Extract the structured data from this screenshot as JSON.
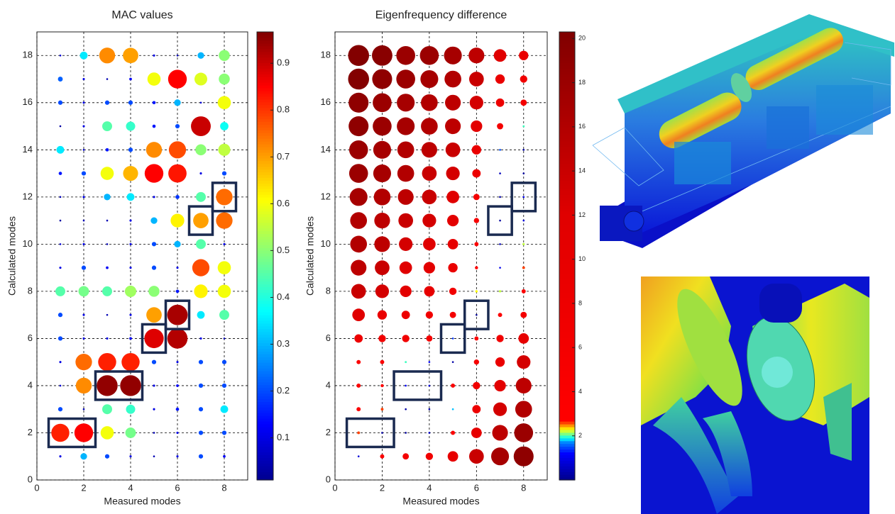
{
  "chart_data": [
    {
      "type": "bubble",
      "title": "MAC values",
      "xlabel": "Measured modes",
      "ylabel": "Calculated modes",
      "x": [
        1,
        2,
        3,
        4,
        5,
        6,
        7,
        8
      ],
      "y": [
        1,
        2,
        3,
        4,
        5,
        6,
        7,
        8,
        9,
        10,
        11,
        12,
        13,
        14,
        15,
        16,
        17,
        18
      ],
      "values": [
        [
          0.1,
          0.3,
          0.2,
          0.1,
          0.05,
          0.1,
          0.2,
          0.12
        ],
        [
          0.82,
          0.85,
          0.6,
          0.48,
          0.05,
          0.1,
          0.2,
          0.2
        ],
        [
          0.2,
          0.05,
          0.45,
          0.42,
          0.1,
          0.15,
          0.2,
          0.35
        ],
        [
          0.08,
          0.72,
          0.95,
          0.95,
          0.1,
          0.12,
          0.2,
          0.2
        ],
        [
          0.1,
          0.75,
          0.82,
          0.82,
          0.2,
          0.1,
          0.2,
          0.2
        ],
        [
          0.2,
          0.1,
          0.1,
          0.12,
          0.88,
          0.92,
          0.1,
          0.05
        ],
        [
          0.2,
          0.1,
          0.05,
          0.1,
          0.7,
          0.93,
          0.35,
          0.45
        ],
        [
          0.45,
          0.48,
          0.45,
          0.52,
          0.5,
          0.15,
          0.62,
          0.6
        ],
        [
          0.1,
          0.2,
          0.12,
          0.1,
          0.2,
          0.1,
          0.78,
          0.6
        ],
        [
          0.08,
          0.1,
          0.05,
          0.1,
          0.2,
          0.3,
          0.45,
          0.1
        ],
        [
          0.03,
          0.05,
          0.05,
          0.1,
          0.3,
          0.62,
          0.7,
          0.75
        ],
        [
          0.05,
          0.1,
          0.3,
          0.35,
          0.1,
          0.18,
          0.45,
          0.75
        ],
        [
          0.15,
          0.2,
          0.6,
          0.68,
          0.85,
          0.83,
          0.1,
          0.2
        ],
        [
          0.35,
          0.08,
          0.15,
          0.2,
          0.72,
          0.78,
          0.5,
          0.55
        ],
        [
          0.03,
          0.1,
          0.45,
          0.42,
          0.15,
          0.2,
          0.9,
          0.38
        ],
        [
          0.2,
          0.1,
          0.2,
          0.2,
          0.15,
          0.3,
          0.08,
          0.6
        ],
        [
          0.22,
          0.1,
          0.05,
          0.12,
          0.6,
          0.85,
          0.58,
          0.5
        ],
        [
          0.08,
          0.35,
          0.72,
          0.7,
          0.1,
          0.05,
          0.3,
          0.5
        ]
      ],
      "xlim": [
        0,
        9
      ],
      "ylim": [
        0,
        19
      ],
      "xticks": [
        0,
        2,
        4,
        6,
        8
      ],
      "yticks": [
        0,
        2,
        4,
        6,
        8,
        10,
        12,
        14,
        16,
        18
      ],
      "grid": true,
      "colorbar": {
        "lim": [
          0.01,
          0.967
        ],
        "ticks": [
          0.1,
          0.2,
          0.3,
          0.4,
          0.5,
          0.6,
          0.7,
          0.8,
          0.9
        ],
        "stops": [
          [
            0.01,
            "#00008f"
          ],
          [
            0.13,
            "#0000ff"
          ],
          [
            0.37,
            "#00ffff"
          ],
          [
            0.49,
            "#80ff80"
          ],
          [
            0.61,
            "#ffff00"
          ],
          [
            0.73,
            "#ff8000"
          ],
          [
            0.85,
            "#ff0000"
          ],
          [
            0.967,
            "#800000"
          ]
        ]
      },
      "highlights": [
        [
          1,
          2
        ],
        [
          2,
          2
        ],
        [
          3,
          4
        ],
        [
          4,
          4
        ],
        [
          5,
          6
        ],
        [
          6,
          7
        ],
        [
          7,
          11
        ],
        [
          8,
          12
        ]
      ]
    },
    {
      "type": "bubble",
      "title": "Eigenfrequency difference",
      "xlabel": "Measured modes",
      "ylabel": "Calculated modes",
      "x": [
        1,
        2,
        3,
        4,
        5,
        6,
        7,
        8
      ],
      "y": [
        1,
        2,
        3,
        4,
        5,
        6,
        7,
        8,
        9,
        10,
        11,
        12,
        13,
        14,
        15,
        16,
        17,
        18
      ],
      "values": [
        [
          0.8,
          4,
          6,
          7,
          10,
          14,
          17,
          19
        ],
        [
          2.6,
          0.3,
          0.2,
          0.6,
          4,
          10,
          15,
          18
        ],
        [
          4,
          2.6,
          0.3,
          0.3,
          1.8,
          8,
          13,
          16
        ],
        [
          4,
          3,
          1.2,
          0.8,
          4,
          7,
          11,
          15
        ],
        [
          4,
          4,
          2,
          1.2,
          0.3,
          5,
          9,
          13
        ],
        [
          8,
          7,
          7,
          6,
          1.4,
          4,
          7,
          10
        ],
        [
          12,
          9,
          8,
          7,
          6,
          0.1,
          4,
          6
        ],
        [
          14,
          13,
          11,
          10,
          7,
          2.3,
          2.2,
          4
        ],
        [
          15,
          14,
          12,
          11,
          9,
          3,
          1,
          2.6
        ],
        [
          16,
          15,
          13,
          12,
          10,
          4,
          0.5,
          2.2
        ],
        [
          16,
          15,
          14,
          13,
          11,
          5,
          0.2,
          0.8
        ],
        [
          17,
          16,
          15,
          14,
          12,
          6,
          0.3,
          1
        ],
        [
          18,
          17,
          16,
          14,
          13,
          8,
          0.5,
          0.2
        ],
        [
          18,
          17,
          16,
          15,
          14,
          9,
          1.5,
          0.3
        ],
        [
          19,
          18,
          17,
          16,
          15,
          11,
          6,
          2
        ],
        [
          19,
          18,
          17,
          16,
          15,
          13,
          8,
          6
        ],
        [
          20,
          19,
          18,
          17,
          16,
          14,
          9,
          7
        ],
        [
          20,
          19.5,
          18,
          18,
          17,
          15,
          12,
          9
        ]
      ],
      "xlim": [
        0,
        9
      ],
      "ylim": [
        0,
        19
      ],
      "xticks": [
        0,
        2,
        4,
        6,
        8
      ],
      "yticks": [
        0,
        2,
        4,
        6,
        8,
        10,
        12,
        14,
        16,
        18
      ],
      "grid": true,
      "colorbar": {
        "lim": [
          0,
          20.3
        ],
        "ticks": [
          2,
          4,
          6,
          8,
          10,
          12,
          14,
          16,
          18,
          20
        ],
        "stops": [
          [
            0,
            "#00008a"
          ],
          [
            1.2,
            "#0000ff"
          ],
          [
            1.7,
            "#0080ff"
          ],
          [
            1.9,
            "#00ffff"
          ],
          [
            2.1,
            "#80ff80"
          ],
          [
            2.3,
            "#ffff00"
          ],
          [
            2.5,
            "#ff8000"
          ],
          [
            2.7,
            "#ff0000"
          ],
          [
            12,
            "#e00000"
          ],
          [
            20.3,
            "#800000"
          ]
        ]
      },
      "highlights": [
        [
          1,
          2
        ],
        [
          2,
          2
        ],
        [
          3,
          4
        ],
        [
          4,
          4
        ],
        [
          5,
          6
        ],
        [
          6,
          7
        ],
        [
          7,
          11
        ],
        [
          8,
          12
        ]
      ]
    }
  ]
}
